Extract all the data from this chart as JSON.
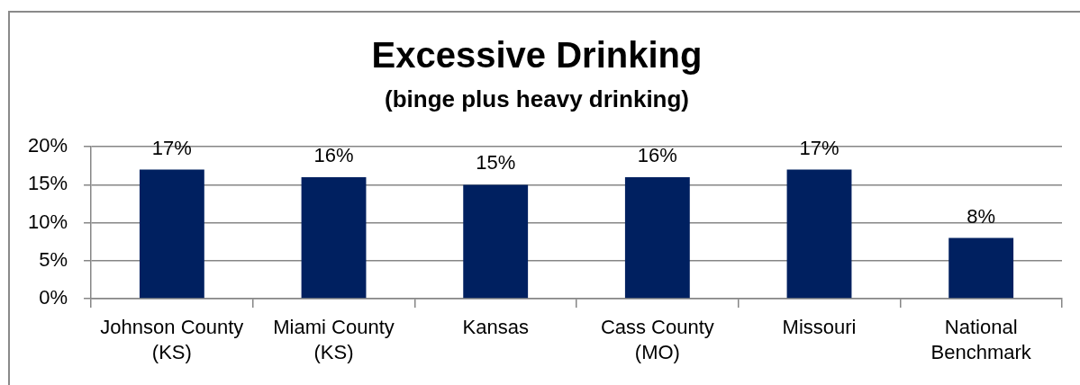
{
  "chart_data": {
    "type": "bar",
    "title": "Excessive Drinking",
    "subtitle": "(binge plus heavy drinking)",
    "categories": [
      "Johnson County (KS)",
      "Miami County (KS)",
      "Kansas",
      "Cass County (MO)",
      "Missouri",
      "National Benchmark"
    ],
    "values": [
      17,
      16,
      15,
      16,
      17,
      8
    ],
    "value_labels": [
      "17%",
      "16%",
      "15%",
      "16%",
      "17%",
      "8%"
    ],
    "color": "#002060",
    "ylim": [
      0,
      20
    ],
    "yticks": [
      {
        "value": 0,
        "label": "0%"
      },
      {
        "value": 5,
        "label": "5%"
      },
      {
        "value": 10,
        "label": "10%"
      },
      {
        "value": 15,
        "label": "15%"
      },
      {
        "value": 20,
        "label": "20%"
      }
    ],
    "grid": "y"
  }
}
